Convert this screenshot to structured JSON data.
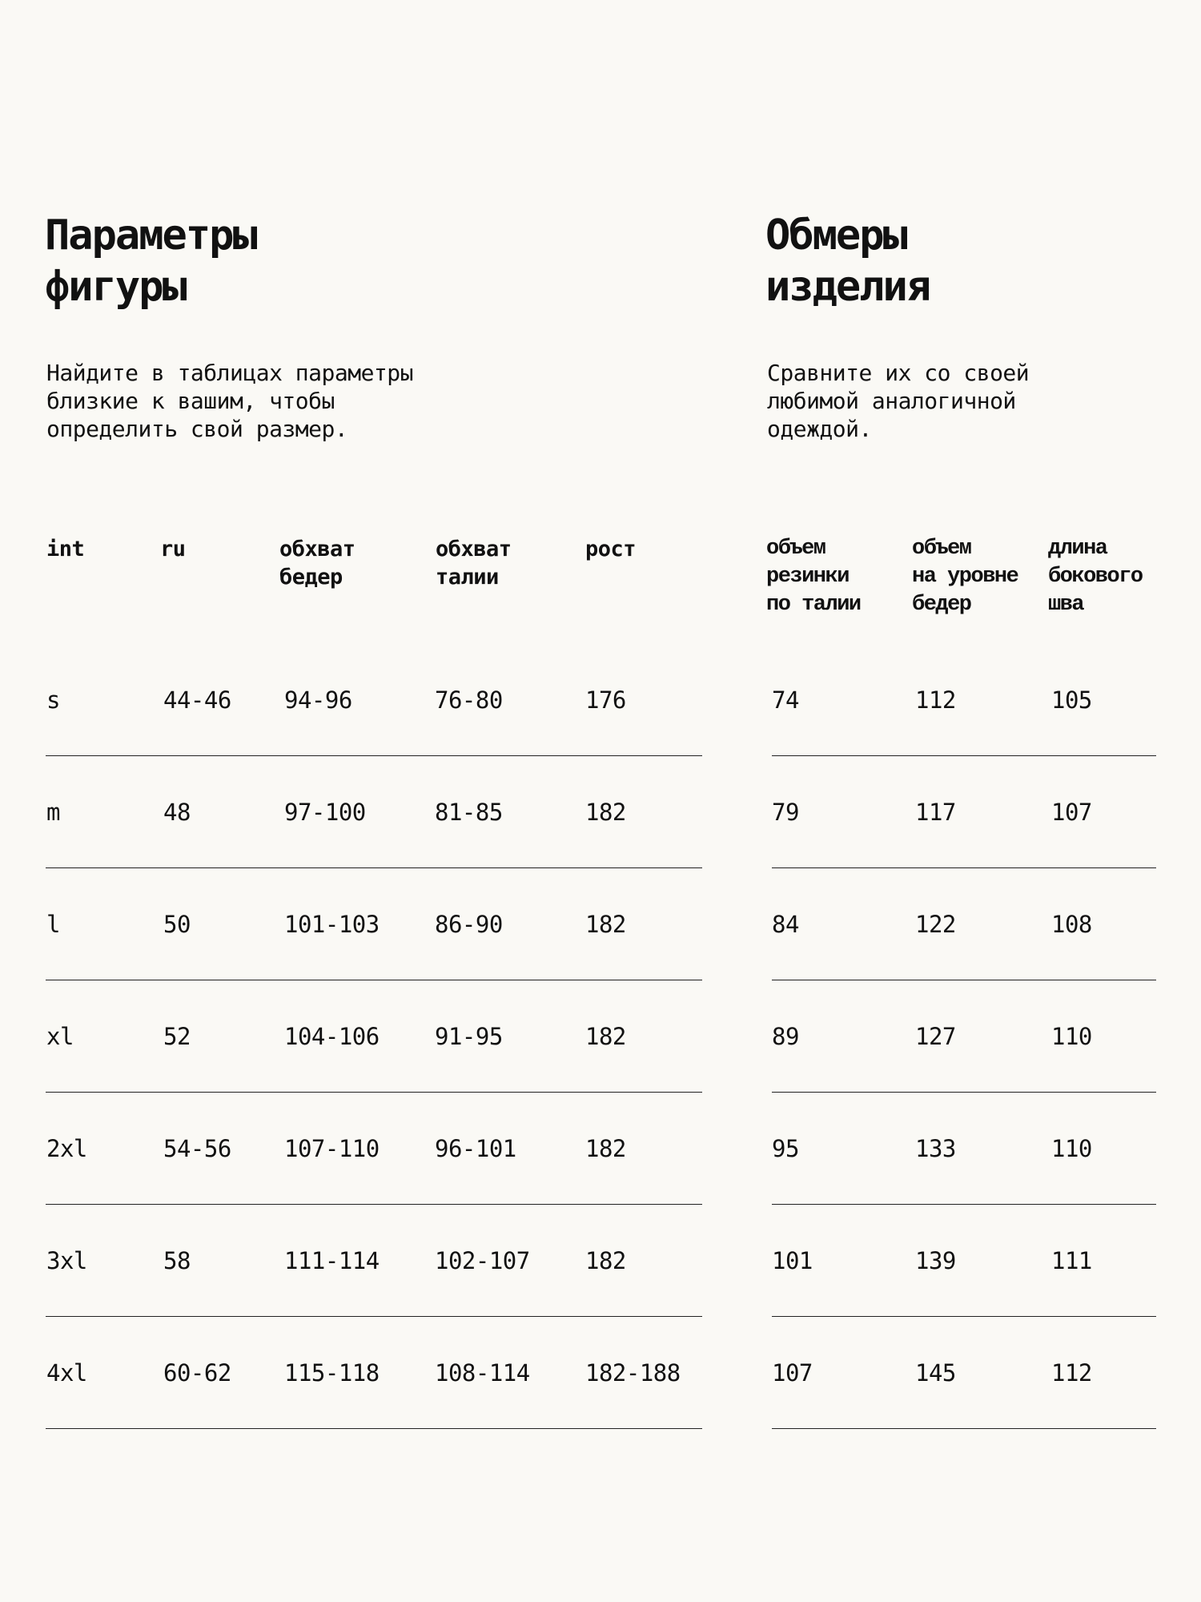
{
  "left": {
    "title_lines": [
      "Параметры",
      "фигуры"
    ],
    "description_lines": [
      "Найдите в таблицах параметры",
      "близкие к вашим, чтобы",
      "определить свой размер."
    ],
    "headers": [
      [
        "int"
      ],
      [
        "ru"
      ],
      [
        "обхват",
        "бедер"
      ],
      [
        "обхват",
        "талии"
      ],
      [
        "рост"
      ]
    ],
    "rows": [
      [
        "s",
        "44-46",
        "94-96",
        "76-80",
        "176"
      ],
      [
        "m",
        "48",
        "97-100",
        "81-85",
        "182"
      ],
      [
        "l",
        "50",
        "101-103",
        "86-90",
        "182"
      ],
      [
        "xl",
        "52",
        "104-106",
        "91-95",
        "182"
      ],
      [
        "2xl",
        "54-56",
        "107-110",
        "96-101",
        "182"
      ],
      [
        "3xl",
        "58",
        "111-114",
        "102-107",
        "182"
      ],
      [
        "4xl",
        "60-62",
        "115-118",
        "108-114",
        "182-188"
      ]
    ]
  },
  "right": {
    "title_lines": [
      "Обмеры",
      "изделия"
    ],
    "description_lines": [
      "Сравните их со своей",
      "любимой аналогичной",
      "одеждой."
    ],
    "headers": [
      [
        "объем",
        "резинки",
        "по талии"
      ],
      [
        "объем",
        "на уровне",
        "бедер"
      ],
      [
        "длина",
        "бокового",
        "шва"
      ]
    ],
    "rows": [
      [
        "74",
        "112",
        "105"
      ],
      [
        "79",
        "117",
        "107"
      ],
      [
        "84",
        "122",
        "108"
      ],
      [
        "89",
        "127",
        "110"
      ],
      [
        "95",
        "133",
        "110"
      ],
      [
        "101",
        "139",
        "111"
      ],
      [
        "107",
        "145",
        "112"
      ]
    ]
  }
}
